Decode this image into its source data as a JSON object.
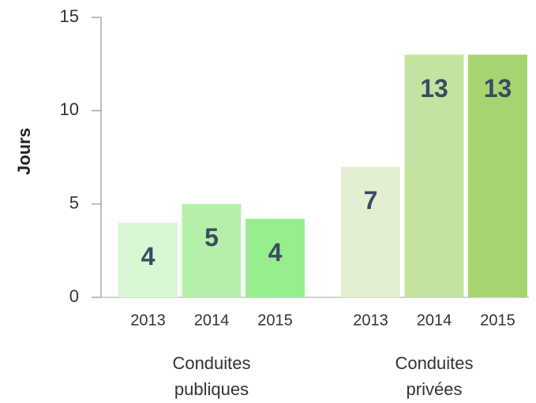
{
  "chart_data": {
    "type": "grouped_bar",
    "y_label": "Jours",
    "ylim": [
      0,
      15
    ],
    "yticks": [
      0,
      5,
      10,
      15
    ],
    "groups": [
      {
        "name": [
          "Conduites",
          "publiques"
        ],
        "categories": [
          "2013",
          "2014",
          "2015"
        ],
        "values": [
          4,
          5,
          4.2
        ],
        "value_labels": [
          "4",
          "5",
          "4"
        ],
        "colors": [
          "#d9f7d4",
          "#b5f0aa",
          "#96ee8c"
        ]
      },
      {
        "name": [
          "Conduites",
          "privées"
        ],
        "categories": [
          "2013",
          "2014",
          "2015"
        ],
        "values": [
          7,
          13,
          13
        ],
        "value_labels": [
          "7",
          "13",
          "13"
        ],
        "colors": [
          "#e3efd2",
          "#c5e3a0",
          "#a6d56f"
        ]
      }
    ]
  }
}
